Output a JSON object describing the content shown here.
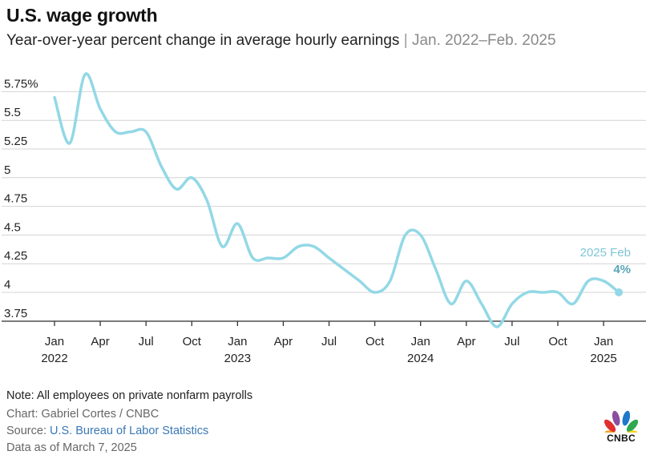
{
  "header": {
    "title": "U.S. wage growth",
    "subtitle_main": "Year-over-year percent change in average hourly earnings",
    "subtitle_sep": " | ",
    "subtitle_range": "Jan. 2022–Feb. 2025"
  },
  "footer": {
    "note": "Note: All employees on private nonfarm payrolls",
    "credit": "Chart: Gabriel Cortes / CNBC",
    "source_prefix": "Source: ",
    "source_link": "U.S. Bureau of Labor Statistics",
    "asof": "Data as of March 7, 2025"
  },
  "logo": {
    "text": "CNBC",
    "icon": "peacock-icon"
  },
  "colors": {
    "line": "#93d8e6",
    "annotation_label": "#7fc6d6",
    "annotation_value": "#5aa6b8",
    "grid": "#d4d4d4",
    "axis": "#333333"
  },
  "chart_data": {
    "type": "line",
    "title": "U.S. wage growth",
    "subtitle": "Year-over-year percent change in average hourly earnings | Jan. 2022–Feb. 2025",
    "xlabel": "",
    "ylabel": "",
    "ylim": [
      3.7,
      5.8
    ],
    "grid": true,
    "y_ticks": [
      {
        "value": 5.75,
        "label": "5.75%"
      },
      {
        "value": 5.5,
        "label": "5.5"
      },
      {
        "value": 5.25,
        "label": "5.25"
      },
      {
        "value": 5.0,
        "label": "5"
      },
      {
        "value": 4.75,
        "label": "4.75"
      },
      {
        "value": 4.5,
        "label": "4.5"
      },
      {
        "value": 4.25,
        "label": "4.25"
      },
      {
        "value": 4.0,
        "label": "4"
      },
      {
        "value": 3.75,
        "label": "3.75"
      }
    ],
    "x_ticks": [
      {
        "x": "2022-01",
        "label": "Jan",
        "year": "2022"
      },
      {
        "x": "2022-04",
        "label": "Apr"
      },
      {
        "x": "2022-07",
        "label": "Jul"
      },
      {
        "x": "2022-10",
        "label": "Oct"
      },
      {
        "x": "2023-01",
        "label": "Jan",
        "year": "2023"
      },
      {
        "x": "2023-04",
        "label": "Apr"
      },
      {
        "x": "2023-07",
        "label": "Jul"
      },
      {
        "x": "2023-10",
        "label": "Oct"
      },
      {
        "x": "2024-01",
        "label": "Jan",
        "year": "2024"
      },
      {
        "x": "2024-04",
        "label": "Apr"
      },
      {
        "x": "2024-07",
        "label": "Jul"
      },
      {
        "x": "2024-10",
        "label": "Oct"
      },
      {
        "x": "2025-01",
        "label": "Jan",
        "year": "2025"
      }
    ],
    "series": [
      {
        "x": [
          "2022-01",
          "2022-02",
          "2022-03",
          "2022-04",
          "2022-05",
          "2022-06",
          "2022-07",
          "2022-08",
          "2022-09",
          "2022-10",
          "2022-11",
          "2022-12",
          "2023-01",
          "2023-02",
          "2023-03",
          "2023-04",
          "2023-05",
          "2023-06",
          "2023-07",
          "2023-08",
          "2023-09",
          "2023-10",
          "2023-11",
          "2023-12",
          "2024-01",
          "2024-02",
          "2024-03",
          "2024-04",
          "2024-05",
          "2024-06",
          "2024-07",
          "2024-08",
          "2024-09",
          "2024-10",
          "2024-11",
          "2024-12",
          "2025-01",
          "2025-02"
        ],
        "values": [
          5.7,
          5.3,
          5.9,
          5.6,
          5.4,
          5.4,
          5.4,
          5.1,
          4.9,
          5.0,
          4.8,
          4.4,
          4.6,
          4.3,
          4.3,
          4.3,
          4.4,
          4.4,
          4.3,
          4.2,
          4.1,
          4.0,
          4.1,
          4.5,
          4.5,
          4.2,
          3.9,
          4.1,
          3.9,
          3.7,
          3.9,
          4.0,
          4.0,
          4.0,
          3.9,
          4.1,
          4.1,
          4.0
        ]
      }
    ],
    "annotation": {
      "x": "2025-02",
      "label": "2025 Feb",
      "value_label": "4%"
    }
  }
}
